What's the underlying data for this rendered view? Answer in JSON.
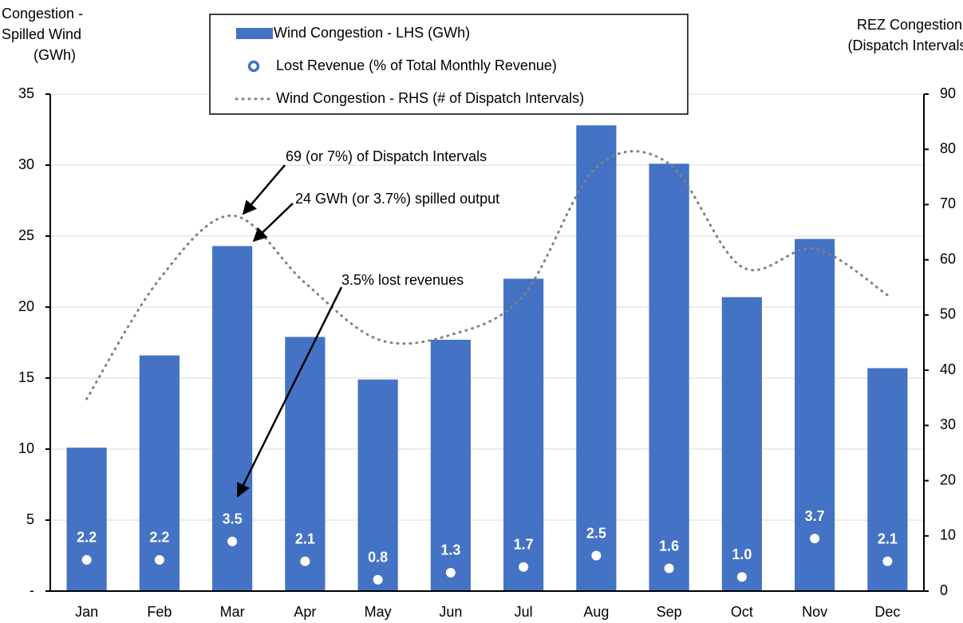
{
  "chart_data": {
    "type": "bar",
    "ylabel": [
      "Congestion -",
      "Spilled Wind",
      "(GWh)"
    ],
    "y2label": [
      "REZ Congestion",
      "(Dispatch Intervals)"
    ],
    "categories": [
      "Jan",
      "Feb",
      "Mar",
      "Apr",
      "May",
      "Jun",
      "Jul",
      "Aug",
      "Sep",
      "Oct",
      "Nov",
      "Dec"
    ],
    "series": [
      {
        "name": "Wind Congestion - LHS (GWh)",
        "type": "bar",
        "color": "#4472c4",
        "values": [
          10.1,
          16.6,
          24.3,
          17.9,
          14.9,
          17.7,
          22.0,
          32.8,
          30.1,
          20.7,
          24.8,
          15.7
        ]
      },
      {
        "name": "Lost Revenue (% of Total Monthly Revenue)",
        "type": "scatter",
        "color": "#4472c4",
        "values": [
          2.2,
          2.2,
          3.5,
          2.1,
          0.8,
          1.3,
          1.7,
          2.5,
          1.6,
          1.0,
          3.7,
          2.1
        ],
        "value_labels": [
          "2.2",
          "2.2",
          "3.5",
          "2.1",
          "0.8",
          "1.3",
          "1.7",
          "2.5",
          "1.6",
          "1.0",
          "3.7",
          "2.1"
        ]
      },
      {
        "name": "Wind Congestion - RHS (# of Dispatch Intervals)",
        "type": "line",
        "axis": "y2",
        "color": "#808080",
        "values": [
          34.8,
          56.5,
          68,
          55.8,
          45.6,
          46.4,
          53.6,
          76.7,
          77.4,
          58.7,
          62,
          53.6
        ]
      }
    ],
    "ylim": [
      0,
      35
    ],
    "yticks": [
      {
        "value": 0,
        "label": "-"
      },
      5,
      10,
      15,
      20,
      25,
      30,
      35
    ],
    "y2lim": [
      0,
      90
    ],
    "y2ticks": [
      0,
      10,
      20,
      30,
      40,
      50,
      60,
      70,
      80,
      90
    ],
    "grid": true,
    "annotations": [
      "69 (or 7%) of Dispatch Intervals",
      "24 GWh (or 3.7%) spilled output",
      "3.5% lost revenues"
    ]
  }
}
